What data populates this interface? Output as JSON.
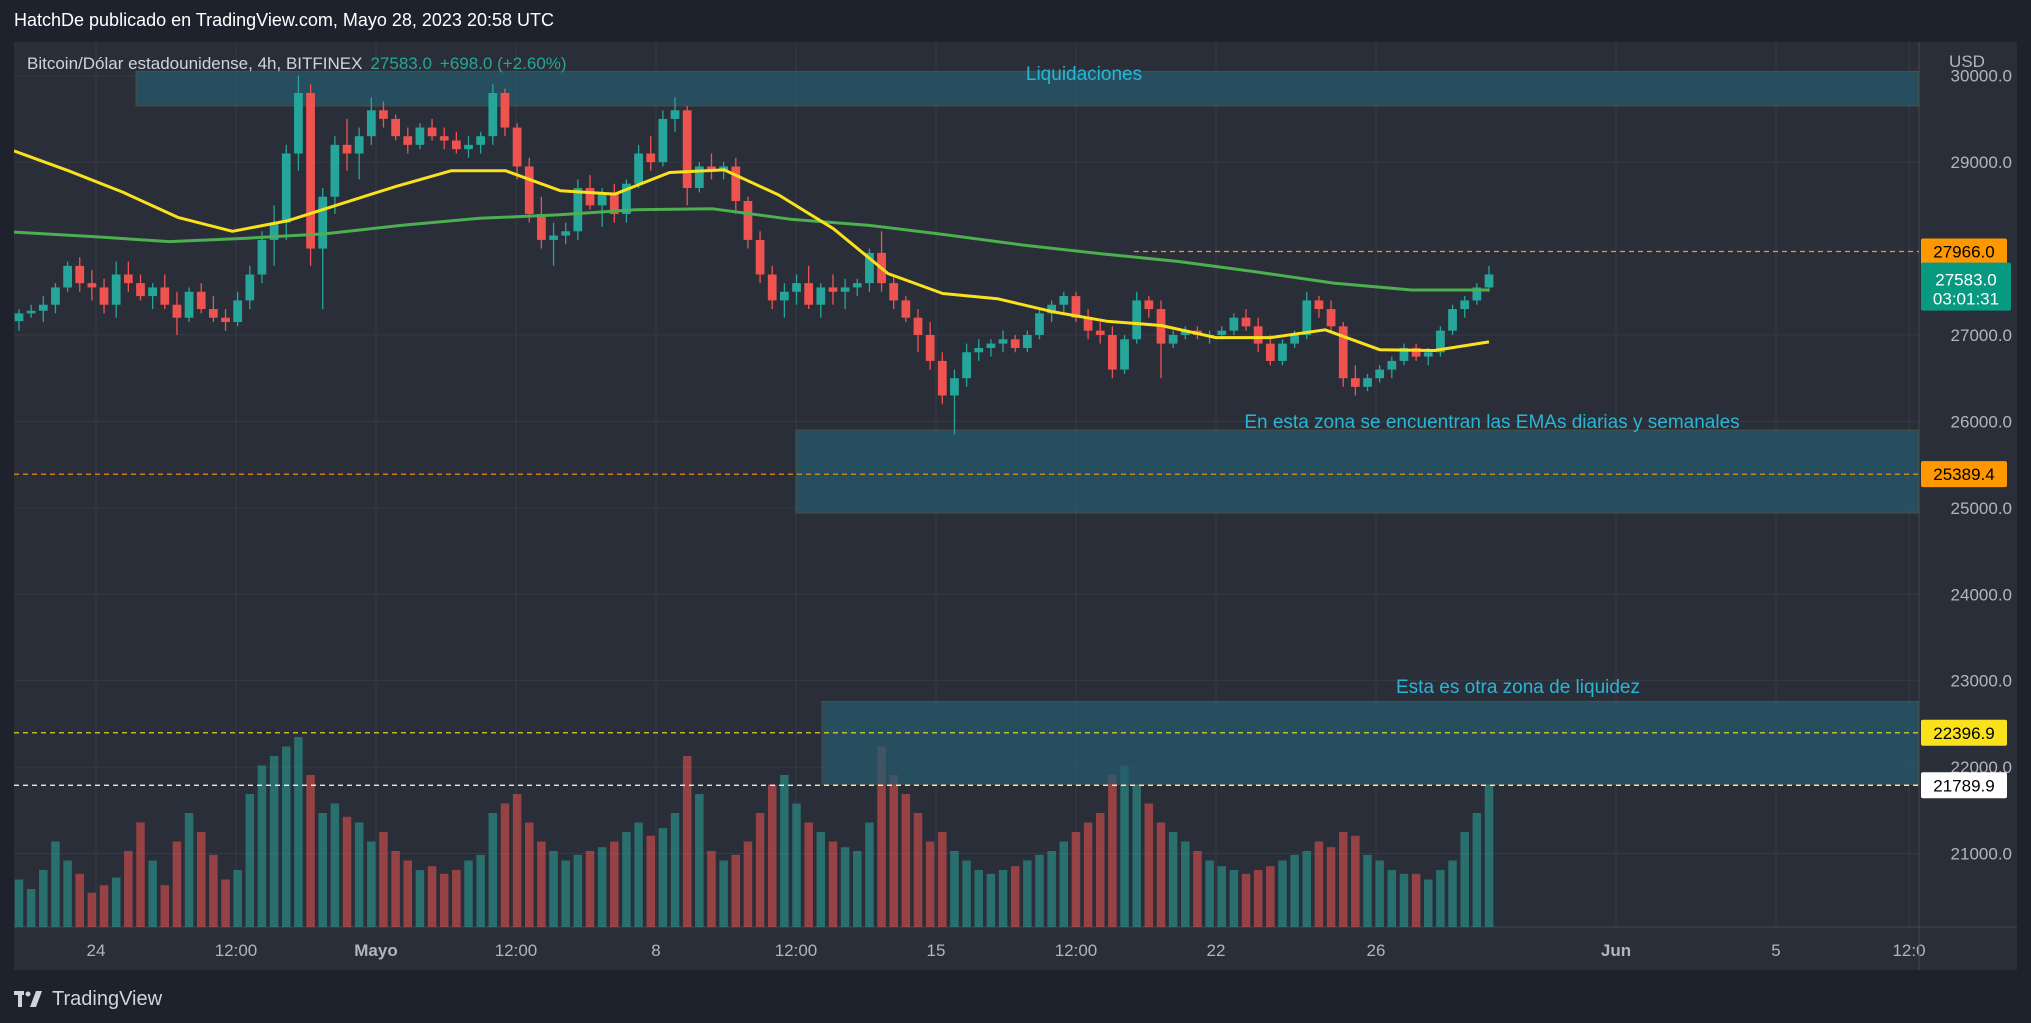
{
  "header": {
    "publisher": "HatchDe publicado en TradingView.com, Mayo 28, 2023 20:58 UTC"
  },
  "symbol": {
    "name": "Bitcoin/Dólar estadounidense, 4h, BITFINEX",
    "last": "27583.0",
    "change": "+698.0 (+2.60%)"
  },
  "currency": "USD",
  "brand": "TradingView",
  "colors": {
    "up": "#26a69a",
    "down": "#ef5350",
    "ema_fast": "#f9e11b",
    "ema_slow": "#4caf50",
    "zone": "#26596b",
    "annotation": "#29b6d4",
    "background": "#2a2e39"
  },
  "annotations": [
    {
      "text": "Liquidaciones"
    },
    {
      "text": "En esta zona se encuentran las EMAs diarias y semanales"
    },
    {
      "text": "Esta es otra zona de liquidez"
    }
  ],
  "chart_data": {
    "type": "candlestick",
    "timeframe": "4h",
    "x_ticks": [
      "24",
      "12:00",
      "Mayo",
      "12:00",
      "8",
      "12:00",
      "15",
      "12:00",
      "22",
      "26",
      "Jun",
      "5",
      "12:0"
    ],
    "y_ticks": [
      "30000.0",
      "29000.0",
      "27000.0",
      "26000.0",
      "25000.0",
      "24000.0",
      "23000.0",
      "22000.0",
      "21000.0"
    ],
    "ylim": [
      20150,
      30390
    ],
    "price_labels": [
      {
        "value": 27966.0,
        "text": "27966.0",
        "color": "#ff9800",
        "text_color": "#000000"
      },
      {
        "value": 27583.0,
        "text": "27583.0",
        "sub": "03:01:31",
        "color": "#089981",
        "text_color": "#ffffff"
      },
      {
        "value": 25389.4,
        "text": "25389.4",
        "color": "#ff9800",
        "text_color": "#000000"
      },
      {
        "value": 22396.9,
        "text": "22396.9",
        "color": "#f9e11b",
        "text_color": "#000000"
      },
      {
        "value": 21789.9,
        "text": "21789.9",
        "color": "#ffffff",
        "text_color": "#000000"
      }
    ],
    "zones": [
      {
        "name": "Liquidaciones",
        "y_top": 30050,
        "y_bottom": 29650
      },
      {
        "name": "EMAs diarias y semanales",
        "y_top": 25900,
        "y_bottom": 24940
      },
      {
        "name": "Otra zona de liquidez",
        "y_top": 22760,
        "y_bottom": 21800
      }
    ],
    "series": [
      {
        "name": "EMA rápida",
        "color": "#f9e11b",
        "values": [
          29130,
          28900,
          28650,
          28360,
          28200,
          28320,
          28520,
          28720,
          28900,
          28900,
          28670,
          28630,
          28880,
          28910,
          28620,
          28230,
          27710,
          27480,
          27420,
          27270,
          27160,
          27110,
          26970,
          26970,
          27060,
          26830,
          26820,
          26920
        ]
      },
      {
        "name": "EMA lenta",
        "color": "#4caf50",
        "values": [
          28190,
          28140,
          28080,
          28120,
          28170,
          28270,
          28350,
          28390,
          28450,
          28460,
          28340,
          28270,
          28160,
          28040,
          27940,
          27850,
          27730,
          27600,
          27520,
          27520
        ]
      }
    ],
    "candles": [
      [
        27160,
        27300,
        27050,
        27250
      ],
      [
        27250,
        27350,
        27200,
        27280
      ],
      [
        27280,
        27450,
        27150,
        27350
      ],
      [
        27350,
        27600,
        27250,
        27550
      ],
      [
        27550,
        27850,
        27500,
        27800
      ],
      [
        27800,
        27900,
        27500,
        27600
      ],
      [
        27600,
        27750,
        27400,
        27550
      ],
      [
        27550,
        27650,
        27250,
        27350
      ],
      [
        27350,
        27850,
        27200,
        27700
      ],
      [
        27700,
        27850,
        27500,
        27600
      ],
      [
        27600,
        27700,
        27400,
        27450
      ],
      [
        27450,
        27600,
        27300,
        27550
      ],
      [
        27550,
        27700,
        27300,
        27350
      ],
      [
        27350,
        27500,
        27000,
        27200
      ],
      [
        27200,
        27550,
        27150,
        27500
      ],
      [
        27500,
        27600,
        27250,
        27300
      ],
      [
        27300,
        27450,
        27150,
        27200
      ],
      [
        27200,
        27300,
        27050,
        27150
      ],
      [
        27150,
        27500,
        27100,
        27400
      ],
      [
        27400,
        27800,
        27300,
        27700
      ],
      [
        27700,
        28200,
        27600,
        28100
      ],
      [
        28100,
        28500,
        27800,
        28300
      ],
      [
        28300,
        29200,
        28100,
        29100
      ],
      [
        29100,
        30000,
        28900,
        29800
      ],
      [
        29800,
        29900,
        27800,
        28000
      ],
      [
        28000,
        28700,
        27300,
        28600
      ],
      [
        28600,
        29300,
        28400,
        29200
      ],
      [
        29200,
        29500,
        28900,
        29100
      ],
      [
        29100,
        29400,
        28800,
        29300
      ],
      [
        29300,
        29750,
        29200,
        29600
      ],
      [
        29600,
        29700,
        29400,
        29500
      ],
      [
        29500,
        29550,
        29250,
        29300
      ],
      [
        29300,
        29400,
        29100,
        29200
      ],
      [
        29200,
        29450,
        29150,
        29400
      ],
      [
        29400,
        29500,
        29250,
        29300
      ],
      [
        29300,
        29400,
        29150,
        29250
      ],
      [
        29250,
        29350,
        29100,
        29150
      ],
      [
        29150,
        29300,
        29050,
        29200
      ],
      [
        29200,
        29350,
        29100,
        29300
      ],
      [
        29300,
        29900,
        29200,
        29800
      ],
      [
        29800,
        29850,
        29300,
        29400
      ],
      [
        29400,
        29450,
        28800,
        28950
      ],
      [
        28950,
        29050,
        28300,
        28400
      ],
      [
        28400,
        28600,
        28000,
        28100
      ],
      [
        28100,
        28300,
        27800,
        28150
      ],
      [
        28150,
        28300,
        28050,
        28200
      ],
      [
        28200,
        28800,
        28100,
        28700
      ],
      [
        28700,
        28850,
        28450,
        28500
      ],
      [
        28500,
        28700,
        28250,
        28650
      ],
      [
        28650,
        28750,
        28300,
        28400
      ],
      [
        28400,
        28800,
        28300,
        28750
      ],
      [
        28750,
        29200,
        28700,
        29100
      ],
      [
        29100,
        29300,
        28900,
        29000
      ],
      [
        29000,
        29600,
        28950,
        29500
      ],
      [
        29500,
        29750,
        29350,
        29600
      ],
      [
        29600,
        29650,
        28500,
        28700
      ],
      [
        28700,
        29000,
        28650,
        28950
      ],
      [
        28950,
        29100,
        28800,
        28900
      ],
      [
        28900,
        29000,
        28800,
        28950
      ],
      [
        28950,
        29050,
        28400,
        28550
      ],
      [
        28550,
        28600,
        28000,
        28100
      ],
      [
        28100,
        28200,
        27600,
        27700
      ],
      [
        27700,
        27800,
        27300,
        27400
      ],
      [
        27400,
        27600,
        27200,
        27500
      ],
      [
        27500,
        27700,
        27350,
        27600
      ],
      [
        27600,
        27800,
        27300,
        27350
      ],
      [
        27350,
        27600,
        27200,
        27550
      ],
      [
        27550,
        27700,
        27350,
        27500
      ],
      [
        27500,
        27650,
        27300,
        27550
      ],
      [
        27550,
        27650,
        27450,
        27600
      ],
      [
        27600,
        28000,
        27500,
        27950
      ],
      [
        27950,
        28200,
        27500,
        27600
      ],
      [
        27600,
        27700,
        27300,
        27400
      ],
      [
        27400,
        27450,
        27150,
        27200
      ],
      [
        27200,
        27300,
        26800,
        27000
      ],
      [
        27000,
        27150,
        26600,
        26700
      ],
      [
        26700,
        26800,
        26200,
        26300
      ],
      [
        26300,
        26600,
        25850,
        26500
      ],
      [
        26500,
        26900,
        26400,
        26800
      ],
      [
        26800,
        26950,
        26700,
        26850
      ],
      [
        26850,
        26950,
        26750,
        26900
      ],
      [
        26900,
        27050,
        26800,
        26950
      ],
      [
        26950,
        27000,
        26800,
        26850
      ],
      [
        26850,
        27050,
        26800,
        27000
      ],
      [
        27000,
        27300,
        26950,
        27250
      ],
      [
        27250,
        27400,
        27150,
        27350
      ],
      [
        27350,
        27500,
        27250,
        27450
      ],
      [
        27450,
        27500,
        27150,
        27200
      ],
      [
        27200,
        27300,
        26950,
        27050
      ],
      [
        27050,
        27150,
        26900,
        27000
      ],
      [
        27000,
        27100,
        26500,
        26600
      ],
      [
        26600,
        27000,
        26550,
        26950
      ],
      [
        26950,
        27500,
        26900,
        27400
      ],
      [
        27400,
        27450,
        27200,
        27300
      ],
      [
        27300,
        27400,
        26500,
        26900
      ],
      [
        26900,
        27050,
        26850,
        27000
      ],
      [
        27000,
        27100,
        26950,
        27050
      ],
      [
        27050,
        27100,
        26950,
        27000
      ],
      [
        27000,
        27050,
        26900,
        27000
      ],
      [
        27000,
        27100,
        26950,
        27050
      ],
      [
        27050,
        27250,
        27000,
        27200
      ],
      [
        27200,
        27300,
        27050,
        27100
      ],
      [
        27100,
        27200,
        26800,
        26900
      ],
      [
        26900,
        27000,
        26650,
        26700
      ],
      [
        26700,
        26950,
        26650,
        26900
      ],
      [
        26900,
        27050,
        26850,
        27000
      ],
      [
        27000,
        27500,
        26950,
        27400
      ],
      [
        27400,
        27450,
        27200,
        27300
      ],
      [
        27300,
        27400,
        27050,
        27100
      ],
      [
        27100,
        27150,
        26400,
        26500
      ],
      [
        26500,
        26650,
        26300,
        26400
      ],
      [
        26400,
        26550,
        26350,
        26500
      ],
      [
        26500,
        26650,
        26450,
        26600
      ],
      [
        26600,
        26750,
        26500,
        26700
      ],
      [
        26700,
        26900,
        26650,
        26850
      ],
      [
        26850,
        26900,
        26700,
        26750
      ],
      [
        26750,
        26850,
        26650,
        26800
      ],
      [
        26800,
        27100,
        26750,
        27050
      ],
      [
        27050,
        27350,
        27000,
        27300
      ],
      [
        27300,
        27450,
        27200,
        27400
      ],
      [
        27400,
        27600,
        27350,
        27550
      ],
      [
        27550,
        27800,
        27500,
        27700
      ]
    ],
    "volumes": [
      25,
      20,
      30,
      45,
      35,
      28,
      18,
      22,
      26,
      40,
      55,
      35,
      22,
      45,
      60,
      50,
      38,
      25,
      30,
      70,
      85,
      90,
      95,
      100,
      80,
      60,
      65,
      58,
      55,
      45,
      50,
      40,
      35,
      30,
      32,
      28,
      30,
      35,
      38,
      60,
      65,
      70,
      55,
      45,
      40,
      35,
      38,
      40,
      42,
      45,
      50,
      55,
      48,
      52,
      60,
      90,
      70,
      40,
      35,
      38,
      45,
      60,
      75,
      80,
      65,
      55,
      50,
      45,
      42,
      40,
      55,
      95,
      80,
      70,
      60,
      45,
      50,
      40,
      35,
      30,
      28,
      30,
      32,
      35,
      38,
      40,
      45,
      50,
      55,
      60,
      80,
      85,
      75,
      65,
      55,
      50,
      45,
      40,
      35,
      32,
      30,
      28,
      30,
      32,
      35,
      38,
      40,
      45,
      42,
      50,
      48,
      38,
      35,
      30,
      28,
      28,
      25,
      30,
      35,
      50,
      60,
      75
    ]
  }
}
